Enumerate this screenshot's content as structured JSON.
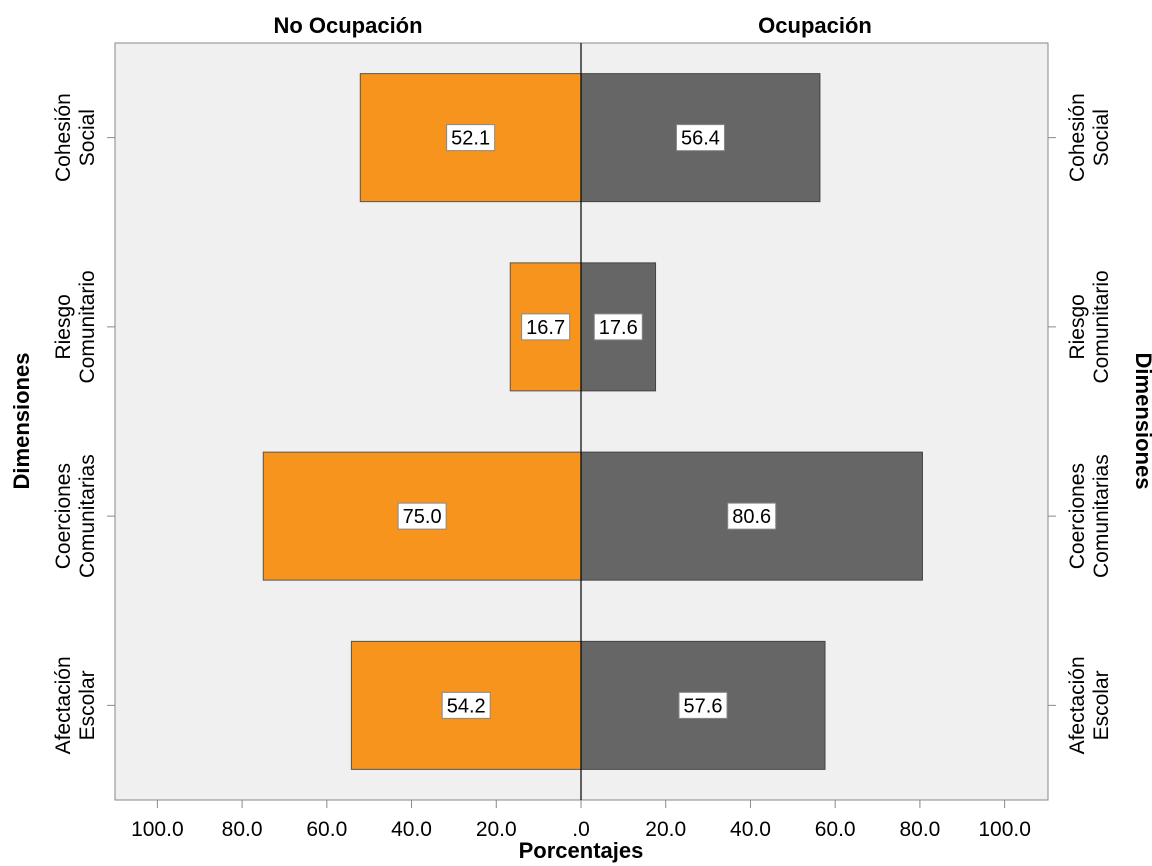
{
  "chart_data": {
    "type": "bar",
    "orientation": "horizontal-population-pyramid",
    "xlabel": "Porcentajes",
    "ylabel": "Dimensiones",
    "panels": [
      {
        "name": "No Ocupación",
        "side": "left",
        "color": "#f7941d"
      },
      {
        "name": "Ocupación",
        "side": "right",
        "color": "#666666"
      }
    ],
    "categories": [
      [
        "Cohesión",
        "Social"
      ],
      [
        "Riesgo",
        "Comunitario"
      ],
      [
        "Coerciones",
        "Comunitarias"
      ],
      [
        "Afectación",
        "Escolar"
      ]
    ],
    "series": [
      {
        "name": "No Ocupación",
        "values": [
          52.1,
          16.7,
          75.0,
          54.2
        ],
        "labels": [
          "52.1",
          "16.7",
          "75.0",
          "54.2"
        ]
      },
      {
        "name": "Ocupación",
        "values": [
          56.4,
          17.6,
          80.6,
          57.6
        ],
        "labels": [
          "56.4",
          "17.6",
          "80.6",
          "57.6"
        ]
      }
    ],
    "xlim": [
      0,
      110
    ],
    "left_ticks": [
      100,
      80,
      60,
      40,
      20
    ],
    "left_tick_labels": [
      "100.0",
      "80.0",
      "60.0",
      "40.0",
      "20.0"
    ],
    "center_tick_label": ".0",
    "right_ticks": [
      20,
      40,
      60,
      80,
      100
    ],
    "right_tick_labels": [
      "20.0",
      "40.0",
      "60.0",
      "80.0",
      "100.0"
    ],
    "grid": false
  }
}
